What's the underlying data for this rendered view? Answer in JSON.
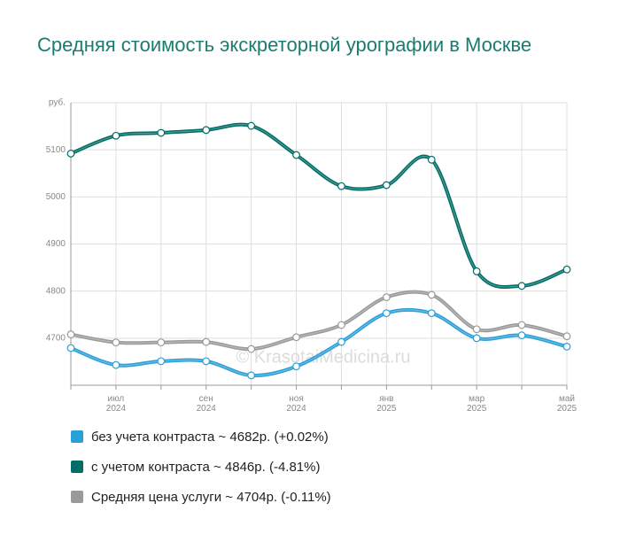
{
  "chart_data": {
    "type": "line",
    "title": "Средняя стоимость экскреторной урографии в Москве",
    "watermark": "© KrasotaiMedicina.ru",
    "categories": [
      null,
      "июл\n2024",
      null,
      "сен\n2024",
      null,
      "ноя\n2024",
      null,
      "янв\n2025",
      null,
      "мар\n2025",
      null,
      "май\n2025"
    ],
    "series": [
      {
        "name": "без учета контраста ~ 4682р. (+0.02%)",
        "color": "#2a9fd8",
        "values": [
          4679,
          4643,
          4651,
          4651,
          4621,
          4640,
          4692,
          4753,
          4753,
          4700,
          4706,
          4682
        ]
      },
      {
        "name": "с учетом контраста ~ 4846р. (-4.81%)",
        "color": "#006d67",
        "values": [
          5092,
          5130,
          5136,
          5142,
          5151,
          5089,
          5023,
          5025,
          5079,
          4842,
          4811,
          4846
        ]
      },
      {
        "name": "Средняя цена услуги ~ 4704р. (-0.11%)",
        "color": "#9a9a9a",
        "values": [
          4708,
          4691,
          4691,
          4692,
          4677,
          4702,
          4728,
          4787,
          4792,
          4719,
          4728,
          4704
        ]
      }
    ],
    "ylim": [
      4600,
      5200
    ],
    "yticks": [
      4700,
      4800,
      4900,
      5000,
      5100,
      {
        "value": 5200,
        "label": "руб."
      }
    ],
    "grid": true
  }
}
